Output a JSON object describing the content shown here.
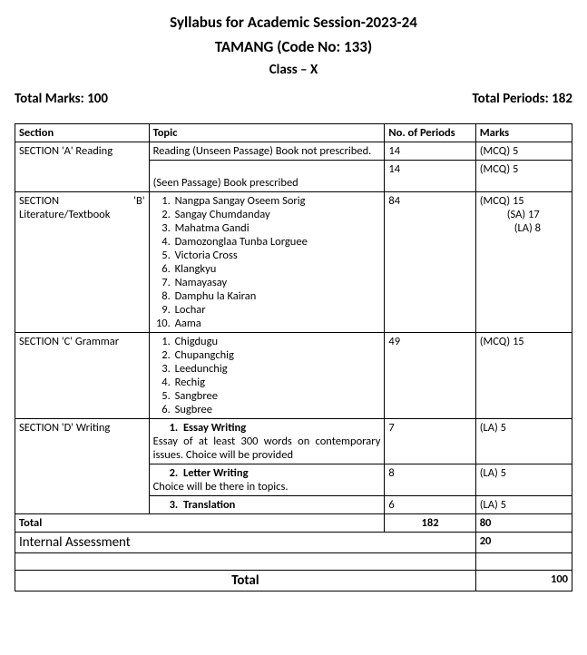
{
  "header": {
    "title": "Syllabus for Academic Session-2023-24",
    "subject": "TAMANG (Code No: 133)",
    "class": "Class – X"
  },
  "meta": {
    "total_marks_label": "Total Marks: 100",
    "total_periods_label": "Total Periods: 182"
  },
  "table": {
    "headers": {
      "section": "Section",
      "topic": "Topic",
      "periods": "No. of Periods",
      "marks": "Marks"
    },
    "section_a": {
      "label": "SECTION 'A' Reading",
      "row1": {
        "topic": "Reading (Unseen Passage) Book not prescribed.",
        "periods": "14",
        "marks": "(MCQ) 5"
      },
      "row2": {
        "topic": "(Seen Passage) Book prescribed",
        "periods": "14",
        "marks": "(MCQ) 5"
      }
    },
    "section_b": {
      "label_left": "SECTION",
      "label_right": "'B'",
      "label_line2": "Literature/Textbook",
      "items": [
        "Nangpa Sangay Oseem Sorig",
        "Sangay Chumdanday",
        "Mahatma Gandi",
        "Damozonglaa Tunba Lorguee",
        "Victoria Cross",
        "Klangkyu",
        "Namayasay",
        "Damphu la Kairan",
        "Lochar",
        "Aama"
      ],
      "periods": "84",
      "marks_l1": "(MCQ) 15",
      "marks_l2": "(SA) 17",
      "marks_l3": "(LA) 8"
    },
    "section_c": {
      "label": "SECTION 'C' Grammar",
      "items": [
        "Chigdugu",
        "Chupangchig",
        "Leedunchig",
        "Rechig",
        "Sangbree",
        "Sugbree"
      ],
      "periods": "49",
      "marks": "(MCQ) 15"
    },
    "section_d": {
      "label": "SECTION 'D' Writing",
      "row1": {
        "lead_num": "1.",
        "lead_text": "Essay Writing",
        "desc": "Essay of at least 300 words on contemporary issues. Choice will be provided",
        "periods": "7",
        "marks": "(LA) 5"
      },
      "row2": {
        "lead_num": "2.",
        "lead_text": "Letter Writing",
        "desc": "Choice will be there in topics.",
        "periods": "8",
        "marks": "(LA) 5"
      },
      "row3": {
        "lead_num": "3.",
        "lead_text": "Translation",
        "periods": "6",
        "marks": "(LA) 5"
      }
    },
    "totals": {
      "total_label": "Total",
      "total_periods": "182",
      "total_marks": "80",
      "internal_label": "Internal Assessment",
      "internal_marks": "20",
      "grand_total_label": "Total",
      "grand_total_marks": "100"
    }
  }
}
